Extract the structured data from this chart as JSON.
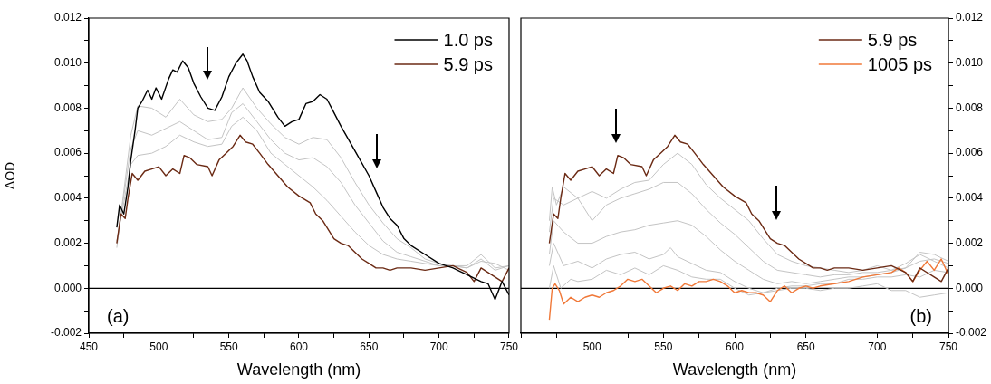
{
  "chart_data": [
    {
      "type": "line",
      "xlabel": "Wavelength (nm)",
      "ylabel": "ΔOD",
      "legend": "top right",
      "annotations": [
        "(a)"
      ],
      "xlim": [
        450,
        750
      ],
      "xticks": [
        450,
        {
          "value": 475,
          "label": null
        },
        500,
        {
          "value": 525,
          "label": null
        },
        550,
        {
          "value": 575,
          "label": null
        },
        600,
        {
          "value": 625,
          "label": null
        },
        650,
        {
          "value": 675,
          "label": null
        },
        700,
        {
          "value": 725,
          "label": null
        },
        750
      ],
      "ylim": [
        -0.002,
        0.012
      ],
      "yticks": [
        {
          "value": -0.002,
          "label": "-0.002"
        },
        {
          "value": -0.001,
          "label": null
        },
        {
          "value": 0,
          "label": "0.000"
        },
        {
          "value": 0.001,
          "label": null
        },
        {
          "value": 0.002,
          "label": "0.002"
        },
        {
          "value": 0.003,
          "label": null
        },
        {
          "value": 0.004,
          "label": "0.004"
        },
        {
          "value": 0.005,
          "label": null
        },
        {
          "value": 0.006,
          "label": "0.006"
        },
        {
          "value": 0.007,
          "label": null
        },
        {
          "value": 0.008,
          "label": "0.008"
        },
        {
          "value": 0.009,
          "label": null
        },
        {
          "value": 0.01,
          "label": "0.010"
        },
        {
          "value": 0.011,
          "label": null
        },
        {
          "value": 0.012,
          "label": "0.012"
        }
      ],
      "ref_lines": [
        {
          "axis": "y",
          "value": 0,
          "color": "#000000"
        }
      ],
      "series": [
        {
          "color": "#c4c4c4",
          "x": [
            470,
            480,
            485,
            495,
            505,
            515,
            525,
            535,
            545,
            552,
            560,
            570,
            580,
            590,
            600,
            610,
            620,
            630,
            640,
            650,
            660,
            670,
            680,
            690,
            700,
            710,
            720,
            730,
            740,
            750
          ],
          "values": [
            0.0018,
            0.0068,
            0.0081,
            0.008,
            0.0076,
            0.0084,
            0.0077,
            0.0074,
            0.0075,
            0.008,
            0.0089,
            0.008,
            0.0073,
            0.0067,
            0.0064,
            0.0067,
            0.0066,
            0.0058,
            0.0047,
            0.0037,
            0.0029,
            0.0022,
            0.0018,
            0.0013,
            0.0011,
            0.001,
            0.0009,
            0.0013,
            0.0008,
            0.001
          ]
        },
        {
          "color": "#c4c4c4",
          "x": [
            470,
            480,
            485,
            495,
            505,
            515,
            525,
            535,
            545,
            552,
            560,
            570,
            580,
            590,
            600,
            610,
            620,
            630,
            640,
            650,
            660,
            670,
            680,
            690,
            700,
            710,
            720,
            730,
            740,
            750
          ],
          "values": [
            0.002,
            0.0062,
            0.007,
            0.0068,
            0.0071,
            0.0074,
            0.007,
            0.0066,
            0.0067,
            0.0078,
            0.0082,
            0.0074,
            0.0066,
            0.006,
            0.0057,
            0.0058,
            0.0054,
            0.0047,
            0.0037,
            0.0029,
            0.0021,
            0.0016,
            0.0014,
            0.0012,
            0.001,
            0.001,
            0.001,
            0.0015,
            0.0009,
            0.001
          ]
        },
        {
          "color": "#c4c4c4",
          "x": [
            470,
            480,
            485,
            495,
            505,
            515,
            525,
            535,
            545,
            552,
            560,
            570,
            580,
            590,
            600,
            610,
            620,
            630,
            640,
            650,
            660,
            670,
            680,
            690,
            700,
            710,
            720,
            730,
            740,
            750
          ],
          "values": [
            0.0021,
            0.0055,
            0.0059,
            0.006,
            0.0063,
            0.0068,
            0.0065,
            0.0063,
            0.0064,
            0.0072,
            0.0076,
            0.007,
            0.006,
            0.0055,
            0.005,
            0.0045,
            0.0039,
            0.0032,
            0.0025,
            0.0019,
            0.0015,
            0.0013,
            0.0012,
            0.0011,
            0.001,
            0.001,
            0.0009,
            0.0012,
            0.0011,
            0.0008
          ]
        },
        {
          "name": "1.0 ps",
          "color": "#000000",
          "x": [
            470,
            472,
            475,
            478,
            480,
            483,
            485,
            488,
            492,
            495,
            498,
            502,
            507,
            510,
            513,
            517,
            521,
            525,
            530,
            535,
            540,
            545,
            550,
            555,
            560,
            563,
            567,
            572,
            578,
            585,
            590,
            595,
            600,
            605,
            610,
            615,
            620,
            625,
            630,
            640,
            650,
            655,
            660,
            665,
            670,
            675,
            680,
            690,
            700,
            710,
            720,
            730,
            735,
            740,
            745,
            750
          ],
          "values": [
            0.0027,
            0.0037,
            0.0033,
            0.0045,
            0.0057,
            0.007,
            0.008,
            0.0083,
            0.0088,
            0.0084,
            0.0089,
            0.0084,
            0.0093,
            0.0097,
            0.0096,
            0.0101,
            0.0098,
            0.0091,
            0.0085,
            0.008,
            0.0079,
            0.0085,
            0.0094,
            0.01,
            0.0104,
            0.0101,
            0.0094,
            0.0087,
            0.0083,
            0.0076,
            0.0072,
            0.0074,
            0.0075,
            0.0082,
            0.0083,
            0.0086,
            0.0084,
            0.0078,
            0.0072,
            0.0061,
            0.005,
            0.0043,
            0.0036,
            0.0031,
            0.0028,
            0.0022,
            0.0019,
            0.0015,
            0.0011,
            0.0009,
            0.0006,
            0.0003,
            0.0002,
            -0.0005,
            0.0003,
            -0.0003
          ]
        },
        {
          "name": "5.9 ps",
          "color": "#6b2a14",
          "x": [
            470,
            473,
            476,
            478,
            481,
            485,
            490,
            495,
            500,
            505,
            510,
            515,
            518,
            522,
            527,
            535,
            538,
            543,
            548,
            553,
            558,
            562,
            567,
            572,
            578,
            585,
            592,
            600,
            608,
            612,
            617,
            620,
            625,
            630,
            635,
            640,
            645,
            650,
            655,
            660,
            665,
            670,
            680,
            690,
            700,
            710,
            720,
            725,
            730,
            740,
            745,
            750
          ],
          "values": [
            0.002,
            0.0033,
            0.0031,
            0.004,
            0.0051,
            0.0048,
            0.0052,
            0.0053,
            0.0054,
            0.005,
            0.0053,
            0.0051,
            0.0059,
            0.0058,
            0.0055,
            0.0054,
            0.005,
            0.0057,
            0.006,
            0.0063,
            0.0068,
            0.0065,
            0.0064,
            0.006,
            0.0055,
            0.005,
            0.0045,
            0.0041,
            0.0038,
            0.0033,
            0.003,
            0.0027,
            0.0022,
            0.002,
            0.0019,
            0.0016,
            0.0013,
            0.0011,
            0.0009,
            0.0009,
            0.0008,
            0.0009,
            0.0009,
            0.0008,
            0.0009,
            0.001,
            0.0007,
            0.0003,
            0.0009,
            0.0005,
            0.0003,
            0.0009
          ]
        }
      ]
    },
    {
      "type": "line",
      "xlabel": "Wavelength (nm)",
      "legend": "top right",
      "annotations": [
        "(b)"
      ],
      "xlim": [
        450,
        750
      ],
      "xticks": [
        {
          "value": 450,
          "label": null
        },
        {
          "value": 475,
          "label": null
        },
        500,
        {
          "value": 525,
          "label": null
        },
        550,
        {
          "value": 575,
          "label": null
        },
        600,
        {
          "value": 625,
          "label": null
        },
        650,
        {
          "value": 675,
          "label": null
        },
        700,
        {
          "value": 725,
          "label": null
        },
        750
      ],
      "y2lim": [
        -0.002,
        0.012
      ],
      "y2ticks": [
        {
          "value": -0.002,
          "label": "-0.002"
        },
        {
          "value": -0.001,
          "label": null
        },
        {
          "value": 0,
          "label": "0.000"
        },
        {
          "value": 0.001,
          "label": null
        },
        {
          "value": 0.002,
          "label": "0.002"
        },
        {
          "value": 0.003,
          "label": null
        },
        {
          "value": 0.004,
          "label": "0.004"
        },
        {
          "value": 0.005,
          "label": null
        },
        {
          "value": 0.006,
          "label": "0.006"
        },
        {
          "value": 0.007,
          "label": null
        },
        {
          "value": 0.008,
          "label": "0.008"
        },
        {
          "value": 0.009,
          "label": null
        },
        {
          "value": 0.01,
          "label": "0.010"
        },
        {
          "value": 0.011,
          "label": null
        },
        {
          "value": 0.012,
          "label": "0.012"
        }
      ],
      "ref_lines": [
        {
          "axis": "y2",
          "value": 0,
          "color": "#000000"
        }
      ],
      "series": [
        {
          "axis": "y2",
          "color": "#c4c4c4",
          "x": [
            470,
            472,
            475,
            480,
            490,
            500,
            510,
            520,
            530,
            540,
            550,
            560,
            570,
            580,
            590,
            600,
            610,
            620,
            630,
            640,
            650,
            660,
            670,
            680,
            690,
            700,
            710,
            720,
            730,
            740,
            750
          ],
          "values": [
            0.003,
            0.0045,
            0.0037,
            0.0045,
            0.004,
            0.0043,
            0.004,
            0.0044,
            0.0047,
            0.0048,
            0.0055,
            0.006,
            0.0055,
            0.0046,
            0.004,
            0.0035,
            0.003,
            0.0022,
            0.0015,
            0.0012,
            0.001,
            0.0009,
            0.0008,
            0.0007,
            0.0008,
            0.001,
            0.0008,
            0.0011,
            0.0015,
            0.0012,
            0.0009
          ]
        },
        {
          "axis": "y2",
          "color": "#c4c4c4",
          "x": [
            470,
            473,
            480,
            490,
            500,
            510,
            520,
            530,
            540,
            550,
            560,
            570,
            580,
            590,
            600,
            610,
            620,
            630,
            640,
            650,
            660,
            670,
            680,
            690,
            700,
            710,
            720,
            730,
            740,
            750
          ],
          "values": [
            0.0025,
            0.004,
            0.0037,
            0.004,
            0.003,
            0.0037,
            0.004,
            0.0042,
            0.0044,
            0.0047,
            0.0047,
            0.0042,
            0.0035,
            0.0029,
            0.0024,
            0.0018,
            0.0012,
            0.0008,
            0.0007,
            0.0006,
            0.0005,
            0.0006,
            0.0006,
            0.0007,
            0.0007,
            0.0008,
            0.0009,
            0.0012,
            0.0013,
            0.0011
          ]
        },
        {
          "axis": "y2",
          "color": "#c4c4c4",
          "x": [
            470,
            473,
            480,
            490,
            500,
            510,
            520,
            530,
            540,
            550,
            560,
            570,
            580,
            590,
            600,
            610,
            620,
            630,
            640,
            650,
            660,
            670,
            680,
            690,
            700,
            710,
            720,
            730,
            740,
            750
          ],
          "values": [
            0.0015,
            0.003,
            0.0025,
            0.002,
            0.002,
            0.0023,
            0.0025,
            0.0026,
            0.0028,
            0.0029,
            0.003,
            0.0028,
            0.0023,
            0.0017,
            0.0012,
            0.0008,
            0.0004,
            0.0002,
            0.0003,
            0.0002,
            0.0003,
            0.0004,
            0.0005,
            0.0005,
            0.0006,
            0.0007,
            0.0009,
            0.0016,
            0.0015,
            0.0012
          ]
        },
        {
          "axis": "y2",
          "color": "#c4c4c4",
          "x": [
            470,
            473,
            480,
            490,
            500,
            510,
            520,
            530,
            540,
            550,
            555,
            560,
            570,
            580,
            590,
            600,
            610,
            620,
            630,
            640,
            650,
            660,
            670,
            680,
            690,
            700,
            710,
            720,
            730,
            740,
            750
          ],
          "values": [
            0.001,
            0.002,
            0.001,
            0.0012,
            0.0009,
            0.0013,
            0.0015,
            0.0016,
            0.0013,
            0.0015,
            0.0018,
            0.0014,
            0.0011,
            0.0008,
            0.0007,
            0.0003,
            0,
            -0.0002,
            0,
            0.0001,
            0.0001,
            0.0002,
            0.0002,
            0.0004,
            0.0004,
            0.0005,
            0.0005,
            0.0006,
            0.0005,
            0.0008,
            0.0007
          ]
        },
        {
          "axis": "y2",
          "color": "#c4c4c4",
          "x": [
            470,
            473,
            478,
            485,
            490,
            500,
            510,
            520,
            530,
            540,
            550,
            560,
            570,
            580,
            590,
            600,
            610,
            620,
            630,
            640,
            650,
            660,
            670,
            680,
            690,
            700,
            710,
            720,
            730,
            740,
            750
          ],
          "values": [
            0,
            0.001,
            0,
            0.0004,
            0.0003,
            0.0004,
            0.0008,
            0.0006,
            0.0009,
            0.0006,
            0.001,
            0.0008,
            0.0005,
            0.0004,
            0.0004,
            0,
            -0.0003,
            -0.0002,
            -0.0001,
            0,
            0,
            -0.0001,
            0,
            0,
            0.0001,
            0.0002,
            -0.0001,
            -0.0001,
            -0.0004,
            -0.0003,
            -0.0002
          ]
        },
        {
          "axis": "y2",
          "name": "5.9 ps",
          "color": "#6b2a14",
          "x": [
            470,
            473,
            476,
            478,
            481,
            485,
            490,
            495,
            500,
            505,
            510,
            515,
            518,
            522,
            527,
            535,
            538,
            543,
            548,
            553,
            558,
            562,
            567,
            572,
            578,
            585,
            592,
            600,
            608,
            612,
            617,
            620,
            625,
            630,
            635,
            640,
            645,
            650,
            655,
            660,
            665,
            670,
            680,
            690,
            700,
            710,
            720,
            725,
            730,
            740,
            745,
            750
          ],
          "values": [
            0.002,
            0.0033,
            0.0031,
            0.004,
            0.0051,
            0.0048,
            0.0052,
            0.0053,
            0.0054,
            0.005,
            0.0053,
            0.0051,
            0.0059,
            0.0058,
            0.0055,
            0.0054,
            0.005,
            0.0057,
            0.006,
            0.0063,
            0.0068,
            0.0065,
            0.0064,
            0.006,
            0.0055,
            0.005,
            0.0045,
            0.0041,
            0.0038,
            0.0033,
            0.003,
            0.0027,
            0.0022,
            0.002,
            0.0019,
            0.0016,
            0.0013,
            0.0011,
            0.0009,
            0.0009,
            0.0008,
            0.0009,
            0.0009,
            0.0008,
            0.0009,
            0.001,
            0.0007,
            0.0003,
            0.0009,
            0.0005,
            0.0003,
            0.0009
          ]
        },
        {
          "axis": "y2",
          "name": "1005 ps",
          "color": "#f07838",
          "x": [
            470,
            472,
            474,
            477,
            480,
            485,
            490,
            495,
            500,
            505,
            510,
            515,
            520,
            525,
            530,
            535,
            540,
            545,
            550,
            555,
            560,
            565,
            570,
            575,
            580,
            585,
            590,
            595,
            600,
            605,
            610,
            615,
            620,
            625,
            630,
            635,
            640,
            645,
            650,
            655,
            660,
            670,
            680,
            690,
            700,
            710,
            715,
            720,
            725,
            730,
            735,
            740,
            745,
            750
          ],
          "values": [
            -0.0014,
            0,
            0.0002,
            -0.0001,
            -0.0007,
            -0.0004,
            -0.0006,
            -0.0004,
            -0.0003,
            -0.0004,
            -0.0002,
            -0.0001,
            0.0001,
            0.0004,
            0.0003,
            0.0004,
            0.0001,
            -0.0002,
            0,
            0.0001,
            -0.0001,
            0.0002,
            0.0001,
            0.0003,
            0.0003,
            0.0004,
            0.0003,
            0.0001,
            -0.0002,
            -0.0001,
            -0.0002,
            -0.0002,
            -0.0003,
            -0.0006,
            -0.0001,
            0.0001,
            -0.0002,
            0,
            0.0001,
            0,
            0.0001,
            0.0002,
            0.0003,
            0.0005,
            0.0006,
            0.0007,
            0.0009,
            0.0007,
            0.0003,
            0.0008,
            0.0012,
            0.0008,
            0.0013,
            0.0006
          ]
        }
      ]
    }
  ]
}
